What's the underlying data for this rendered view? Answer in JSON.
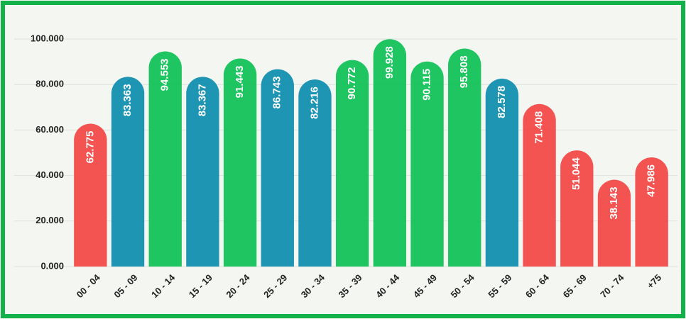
{
  "chart_data": {
    "type": "bar",
    "categories": [
      "00 - 04",
      "05 - 09",
      "10 - 14",
      "15 - 19",
      "20 - 24",
      "25 - 29",
      "30 - 34",
      "35 - 39",
      "40 - 44",
      "45 - 49",
      "50 - 54",
      "55 - 59",
      "60 - 64",
      "65 - 69",
      "70 - 74",
      "+75"
    ],
    "values": [
      62775,
      83363,
      94553,
      83367,
      91443,
      86743,
      82216,
      90772,
      99928,
      90115,
      95808,
      82578,
      71408,
      51044,
      38143,
      47986
    ],
    "value_labels": [
      "62.775",
      "83.363",
      "94.553",
      "83.367",
      "91.443",
      "86.743",
      "82.216",
      "90.772",
      "99.928",
      "90.115",
      "95.808",
      "82.578",
      "71.408",
      "51.044",
      "38.143",
      "47.986"
    ],
    "colors": [
      "#f24a48",
      "#138fb0",
      "#13c257",
      "#138fb0",
      "#13c257",
      "#138fb0",
      "#138fb0",
      "#13c257",
      "#13c257",
      "#13c257",
      "#13c257",
      "#138fb0",
      "#f24a48",
      "#f24a48",
      "#f24a48",
      "#f24a48"
    ],
    "ylim": [
      0,
      100000
    ],
    "yticks": [
      {
        "value": 0,
        "label": "0.000"
      },
      {
        "value": 20000,
        "label": "20.000"
      },
      {
        "value": 40000,
        "label": "40.000"
      },
      {
        "value": 60000,
        "label": "60.000"
      },
      {
        "value": 80000,
        "label": "80.000"
      },
      {
        "value": 100000,
        "label": "100.000"
      }
    ],
    "grid": true
  }
}
